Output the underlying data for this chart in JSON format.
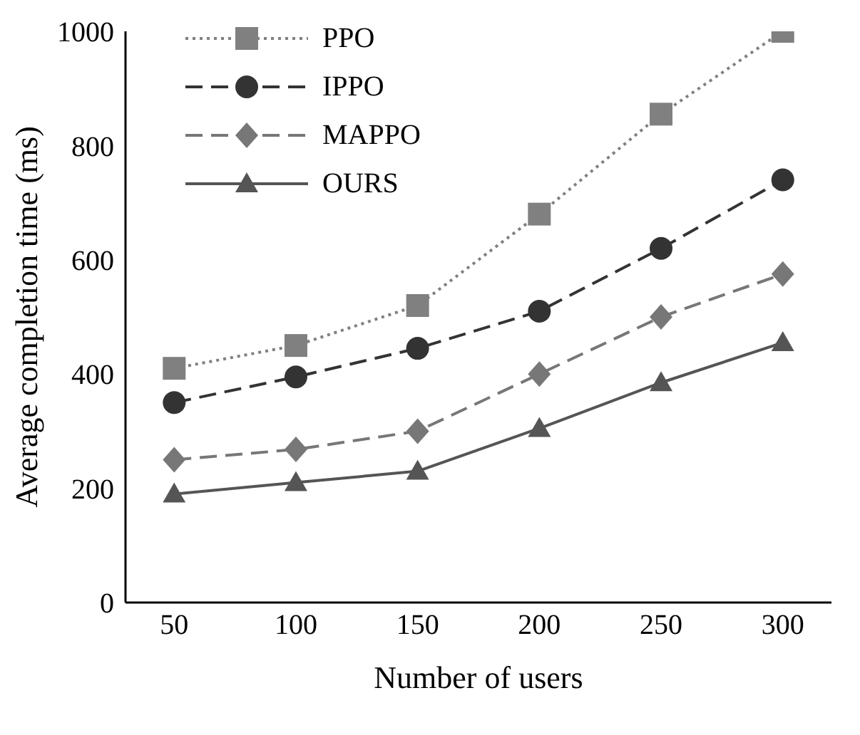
{
  "chart_data": {
    "type": "line",
    "xlabel": "Number of users",
    "ylabel": "Average completion time (ms)",
    "x": [
      50,
      100,
      150,
      200,
      250,
      300
    ],
    "xlim": [
      30,
      320
    ],
    "xticks": [
      50,
      100,
      150,
      200,
      250,
      300
    ],
    "ylim": [
      0,
      1000
    ],
    "yticks": [
      0,
      200,
      400,
      600,
      800,
      1000
    ],
    "grid": false,
    "legend": "top left",
    "series": [
      {
        "name": "PPO",
        "color": "#808080",
        "marker": "square",
        "line_style": "dotted",
        "values": [
          410,
          450,
          520,
          680,
          855,
          1000
        ]
      },
      {
        "name": "IPPO",
        "color": "#333333",
        "marker": "circle",
        "line_style": "dashed",
        "values": [
          350,
          395,
          445,
          510,
          620,
          740
        ]
      },
      {
        "name": "MAPPO",
        "color": "#777777",
        "marker": "diamond",
        "line_style": "dashed",
        "values": [
          250,
          268,
          300,
          400,
          500,
          575
        ]
      },
      {
        "name": "OURS",
        "color": "#555555",
        "marker": "triangle",
        "line_style": "solid",
        "values": [
          190,
          210,
          230,
          305,
          385,
          455
        ]
      }
    ]
  }
}
